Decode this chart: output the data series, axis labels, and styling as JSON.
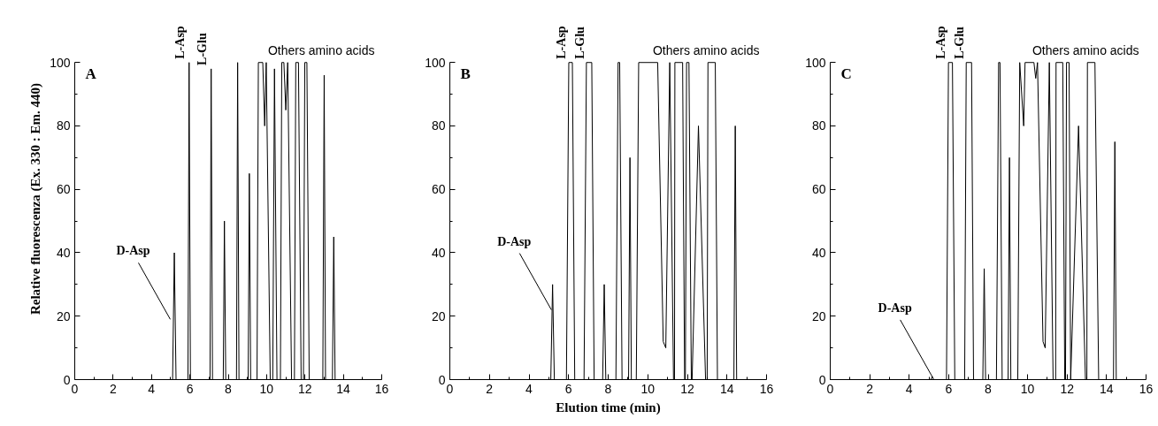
{
  "chart_data": [
    {
      "type": "line",
      "title": "A",
      "ylabel": "Relative fluorescenza (Ex. 330 : Em. 440)",
      "series": [
        {
          "color": "#000000",
          "x": [
            0,
            5.1,
            5.19,
            5.28,
            5.9,
            5.96,
            6.03,
            7.05,
            7.11,
            7.18,
            7.74,
            7.8,
            7.87,
            8.43,
            8.49,
            8.56,
            9.04,
            9.1,
            9.17,
            9.5,
            9.57,
            9.8,
            9.9,
            9.98,
            10.19,
            10.32,
            10.41,
            10.54,
            10.72,
            10.79,
            10.9,
            11.0,
            11.1,
            11.3,
            11.45,
            11.52,
            11.66,
            11.8,
            11.92,
            11.99,
            12.1,
            12.22,
            12.93,
            13.0,
            13.07,
            13.43,
            13.5,
            13.57,
            16
          ],
          "values": [
            0,
            0,
            40,
            0,
            0,
            100,
            0,
            0,
            98,
            0,
            0,
            50,
            0,
            0,
            100,
            0,
            0,
            65,
            0,
            0,
            100,
            100,
            80,
            100,
            0,
            0,
            98,
            0,
            0,
            100,
            100,
            85,
            100,
            0,
            0,
            100,
            100,
            0,
            0,
            100,
            100,
            0,
            0,
            96,
            0,
            0,
            45,
            0,
            0
          ]
        }
      ],
      "annotations": [
        {
          "text": "D-Asp",
          "x": 4.98,
          "y": 19
        },
        {
          "text": "L-Asp",
          "x": 5.96,
          "y": 100
        },
        {
          "text": "L-Glu",
          "x": 7.11,
          "y": 98
        },
        "Others amino acids"
      ],
      "xlim": [
        0,
        16
      ],
      "ylim": [
        0,
        100
      ],
      "xticks": [
        0,
        {
          "value": 1,
          "label": null
        },
        2,
        {
          "value": 3,
          "label": null
        },
        4,
        {
          "value": 5,
          "label": null
        },
        6,
        {
          "value": 7,
          "label": null
        },
        8,
        {
          "value": 9,
          "label": null
        },
        10,
        {
          "value": 11,
          "label": null
        },
        12,
        {
          "value": 13,
          "label": null
        },
        14,
        {
          "value": 15,
          "label": null
        },
        16
      ],
      "yticks": [
        0,
        {
          "value": 10,
          "label": null
        },
        20,
        {
          "value": 30,
          "label": null
        },
        40,
        {
          "value": 50,
          "label": null
        },
        60,
        {
          "value": 70,
          "label": null
        },
        80,
        {
          "value": 90,
          "label": null
        },
        100
      ],
      "grid": false
    },
    {
      "type": "line",
      "title": "B",
      "xlabel": "Elution time (min)",
      "series": [
        {
          "color": "#000000",
          "x": [
            0,
            5.1,
            5.19,
            5.28,
            5.89,
            6.01,
            6.19,
            6.31,
            6.78,
            6.9,
            7.17,
            7.29,
            7.72,
            7.8,
            7.88,
            8.39,
            8.5,
            8.58,
            8.7,
            9.03,
            9.1,
            9.17,
            9.42,
            9.54,
            10.5,
            10.78,
            10.91,
            11.11,
            11.3,
            11.35,
            11.37,
            11.76,
            11.86,
            11.9,
            11.96,
            12.08,
            12.2,
            12.24,
            12.56,
            12.92,
            13.0,
            13.04,
            13.41,
            13.52,
            14.35,
            14.42,
            14.49,
            16
          ],
          "values": [
            0,
            0,
            30,
            0,
            0,
            100,
            100,
            0,
            0,
            100,
            100,
            0,
            0,
            30,
            0,
            0,
            100,
            100,
            0,
            0,
            70,
            0,
            0,
            100,
            100,
            12,
            10,
            100,
            0,
            0,
            100,
            100,
            0,
            0,
            100,
            100,
            0,
            0,
            80,
            0,
            0,
            100,
            100,
            0,
            0,
            80,
            0,
            0
          ]
        }
      ],
      "annotations": [
        {
          "text": "D-Asp",
          "x": 5.13,
          "y": 22
        },
        {
          "text": "L-Asp",
          "x": 6.1,
          "y": 100
        },
        {
          "text": "L-Glu",
          "x": 7.03,
          "y": 100
        },
        "Others amino acids"
      ],
      "xlim": [
        0,
        16
      ],
      "ylim": [
        0,
        100
      ],
      "xticks": [
        0,
        {
          "value": 1,
          "label": null
        },
        2,
        {
          "value": 3,
          "label": null
        },
        4,
        {
          "value": 5,
          "label": null
        },
        6,
        {
          "value": 7,
          "label": null
        },
        8,
        {
          "value": 9,
          "label": null
        },
        10,
        {
          "value": 11,
          "label": null
        },
        12,
        {
          "value": 13,
          "label": null
        },
        14,
        {
          "value": 15,
          "label": null
        },
        16
      ],
      "yticks": [
        0,
        {
          "value": 10,
          "label": null
        },
        20,
        {
          "value": 30,
          "label": null
        },
        40,
        {
          "value": 50,
          "label": null
        },
        60,
        {
          "value": 70,
          "label": null
        },
        80,
        {
          "value": 90,
          "label": null
        },
        100
      ],
      "grid": false
    },
    {
      "type": "line",
      "title": "C",
      "series": [
        {
          "color": "#000000",
          "x": [
            0,
            5.1,
            5.17,
            5.24,
            5.89,
            5.99,
            6.19,
            6.31,
            6.81,
            6.89,
            7.16,
            7.26,
            7.73,
            7.8,
            7.87,
            8.42,
            8.53,
            8.6,
            8.71,
            9.01,
            9.08,
            9.15,
            9.5,
            9.6,
            9.8,
            9.87,
            10.32,
            10.41,
            10.5,
            10.78,
            10.89,
            11.1,
            11.29,
            11.42,
            11.44,
            11.78,
            11.88,
            11.92,
            11.97,
            12.1,
            12.18,
            12.58,
            12.93,
            13.0,
            13.03,
            13.41,
            13.6,
            14.35,
            14.42,
            14.49,
            16
          ],
          "values": [
            0,
            0,
            1,
            0,
            0,
            100,
            100,
            0,
            0,
            100,
            100,
            0,
            0,
            35,
            0,
            0,
            100,
            100,
            0,
            0,
            70,
            0,
            0,
            100,
            80,
            100,
            100,
            95,
            100,
            12,
            10,
            100,
            0,
            0,
            100,
            100,
            0,
            0,
            100,
            100,
            0,
            80,
            0,
            0,
            100,
            100,
            0,
            0,
            75,
            0,
            0
          ]
        }
      ],
      "annotations": [
        {
          "text": "D-Asp",
          "x": 5.16,
          "y": 1
        },
        {
          "text": "L-Asp",
          "x": 6.09,
          "y": 100
        },
        {
          "text": "L-Glu",
          "x": 7.03,
          "y": 100
        },
        "Others amino acids"
      ],
      "xlim": [
        0,
        16
      ],
      "ylim": [
        0,
        100
      ],
      "xticks": [
        0,
        {
          "value": 1,
          "label": null
        },
        2,
        {
          "value": 3,
          "label": null
        },
        4,
        {
          "value": 5,
          "label": null
        },
        6,
        {
          "value": 7,
          "label": null
        },
        8,
        {
          "value": 9,
          "label": null
        },
        10,
        {
          "value": 11,
          "label": null
        },
        12,
        {
          "value": 13,
          "label": null
        },
        14,
        {
          "value": 15,
          "label": null
        },
        16
      ],
      "yticks": [
        0,
        {
          "value": 10,
          "label": null
        },
        20,
        {
          "value": 30,
          "label": null
        },
        40,
        {
          "value": 50,
          "label": null
        },
        60,
        {
          "value": 70,
          "label": null
        },
        80,
        {
          "value": 90,
          "label": null
        },
        100
      ],
      "grid": false
    }
  ]
}
